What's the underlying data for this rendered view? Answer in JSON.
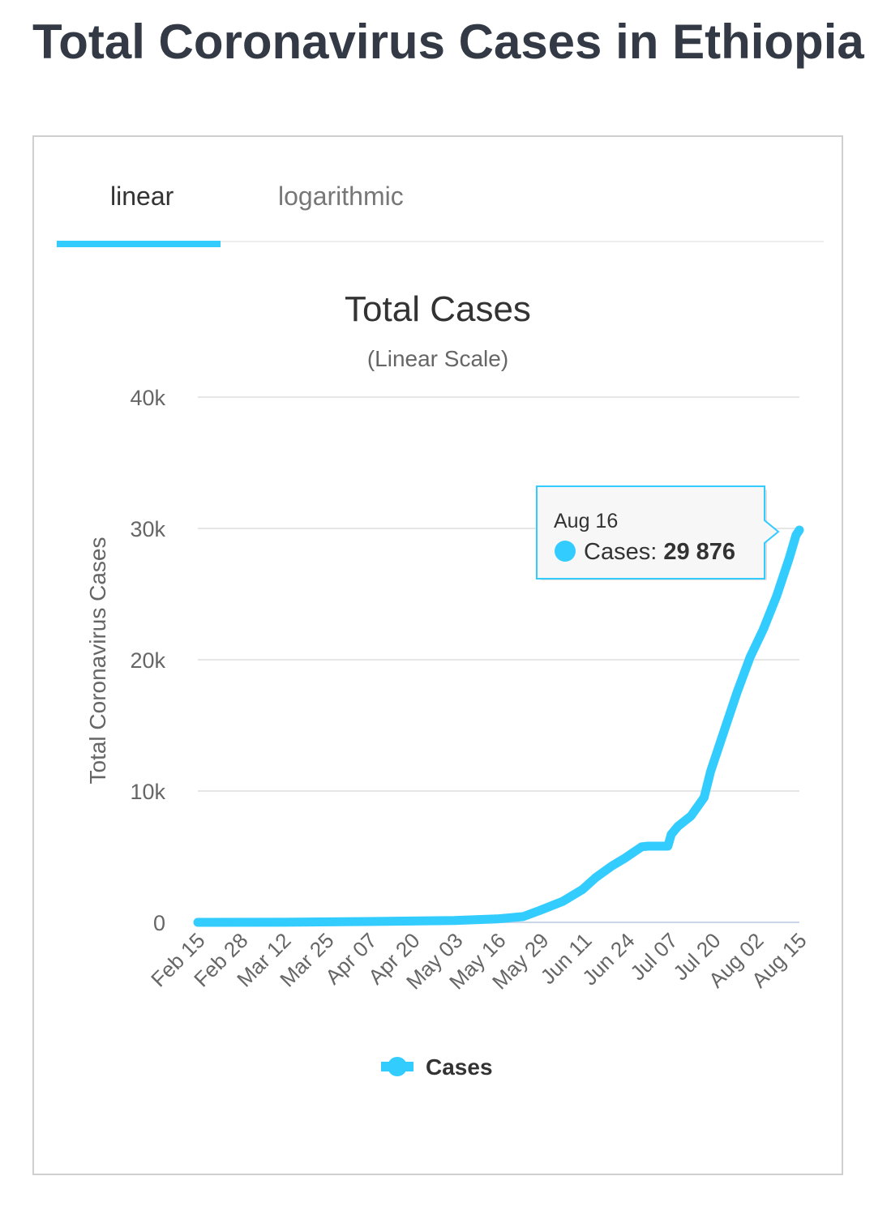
{
  "page": {
    "title": "Total Coronavirus Cases in Ethiopia"
  },
  "tabs": [
    {
      "label": "linear",
      "active": true
    },
    {
      "label": "logarithmic",
      "active": false
    }
  ],
  "colors": {
    "series": "#33ccff",
    "grid": "#e6e6e6",
    "text": "#333333",
    "accent": "#33ccff"
  },
  "chart_data": {
    "type": "line",
    "title": "Total Cases",
    "subtitle": "(Linear Scale)",
    "ylabel": "Total Coronavirus Cases",
    "ylim": [
      0,
      40000
    ],
    "yticks": [
      0,
      10000,
      20000,
      30000,
      40000
    ],
    "ytick_labels": [
      "0",
      "10k",
      "20k",
      "30k",
      "40k"
    ],
    "xlim": [
      "2020-02-15",
      "2020-08-16"
    ],
    "xtick_labels": [
      "Feb 15",
      "Feb 28",
      "Mar 12",
      "Mar 25",
      "Apr 07",
      "Apr 20",
      "May 03",
      "May 16",
      "May 29",
      "Jun 11",
      "Jun 24",
      "Jul 07",
      "Jul 20",
      "Aug 02",
      "Aug 15"
    ],
    "grid": true,
    "legend_position": "bottom-center",
    "series": [
      {
        "name": "Cases",
        "x": [
          "2020-02-15",
          "2020-03-12",
          "2020-04-07",
          "2020-05-03",
          "2020-05-16",
          "2020-05-24",
          "2020-05-29",
          "2020-06-05",
          "2020-06-11",
          "2020-06-15",
          "2020-06-20",
          "2020-06-24",
          "2020-06-29",
          "2020-07-01",
          "2020-07-07",
          "2020-07-08",
          "2020-07-10",
          "2020-07-14",
          "2020-07-18",
          "2020-07-20",
          "2020-07-24",
          "2020-07-28",
          "2020-08-01",
          "2020-08-05",
          "2020-08-09",
          "2020-08-13",
          "2020-08-15",
          "2020-08-16"
        ],
        "values": [
          0,
          5,
          60,
          140,
          260,
          440,
          900,
          1600,
          2500,
          3400,
          4300,
          4900,
          5750,
          5800,
          5800,
          6700,
          7300,
          8100,
          9500,
          11500,
          14500,
          17500,
          20200,
          22300,
          24800,
          27800,
          29500,
          29876
        ]
      }
    ],
    "tooltip": {
      "date": "Aug 16",
      "series": "Cases",
      "label": "Cases:",
      "value": "29 876"
    }
  }
}
